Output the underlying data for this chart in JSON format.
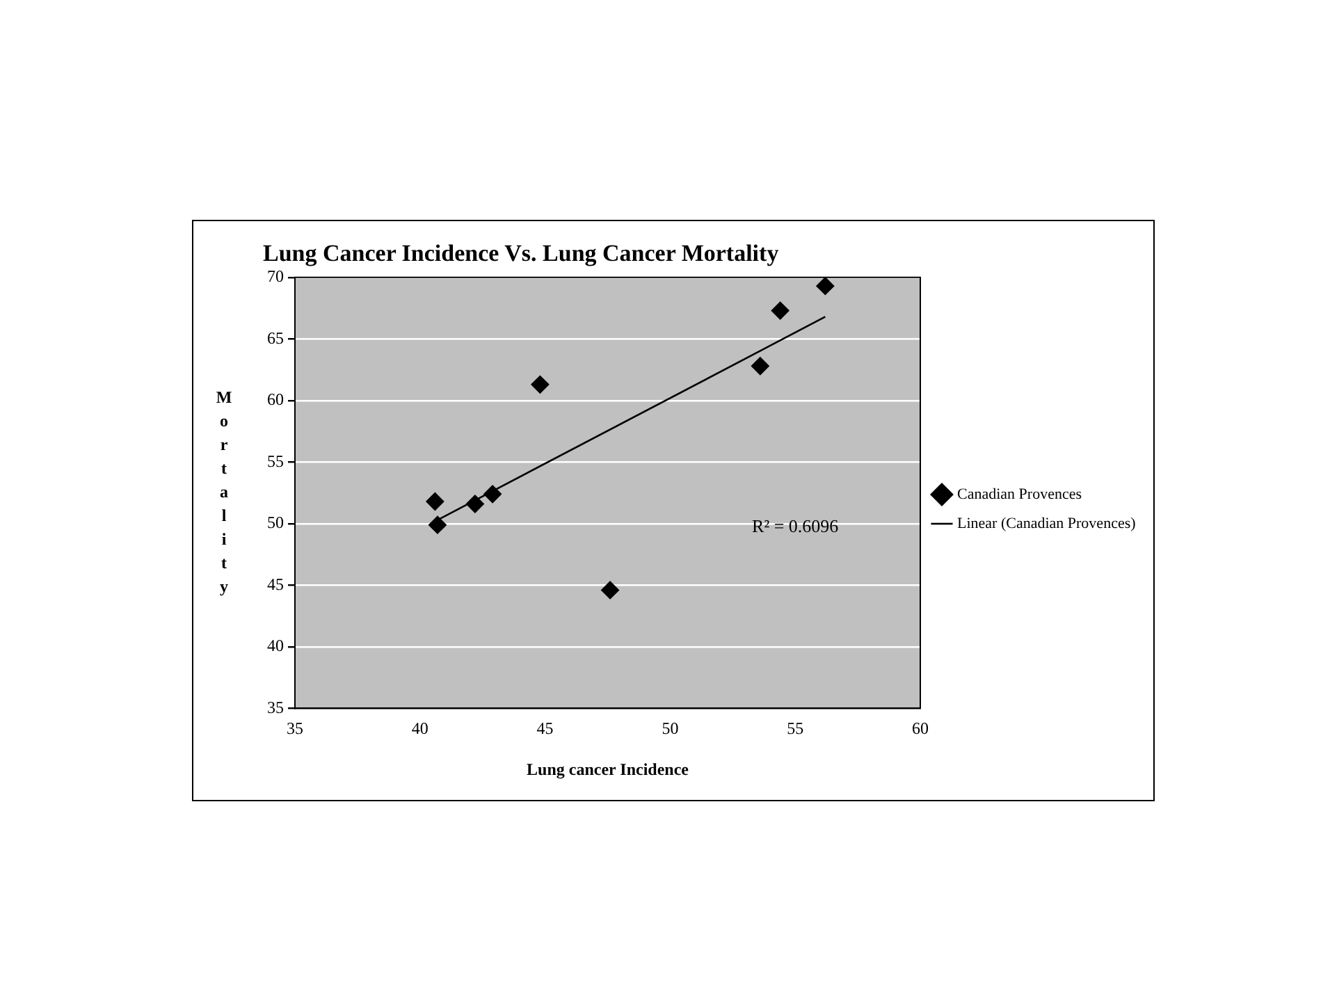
{
  "chart_data": {
    "type": "scatter",
    "title": "Lung Cancer Incidence Vs. Lung Cancer Mortality",
    "xlabel": "Lung cancer Incidence",
    "ylabel": "Mortality",
    "series": [
      {
        "name": "Canadian Provences",
        "color": "#000000",
        "marker": "diamond",
        "x": [
          40.6,
          40.7,
          42.2,
          42.9,
          44.8,
          47.6,
          53.6,
          54.4,
          56.2
        ],
        "values": [
          51.8,
          49.9,
          51.6,
          52.4,
          61.3,
          44.6,
          62.8,
          67.3,
          69.3
        ]
      },
      {
        "name": "Linear (Canadian Provences)",
        "type": "line",
        "color": "#000000",
        "marker": "none",
        "line_style": "solid",
        "x": [
          40.7,
          56.2
        ],
        "values": [
          50.3,
          66.8
        ]
      }
    ],
    "xlim": [
      35,
      60
    ],
    "xticks": [
      35,
      40,
      45,
      50,
      55,
      60
    ],
    "ylim": [
      35,
      70
    ],
    "yticks": [
      35,
      40,
      45,
      50,
      55,
      60,
      65,
      70
    ],
    "grid": "y",
    "legend": "right",
    "annotations": [
      "R² = 0.6096"
    ]
  }
}
